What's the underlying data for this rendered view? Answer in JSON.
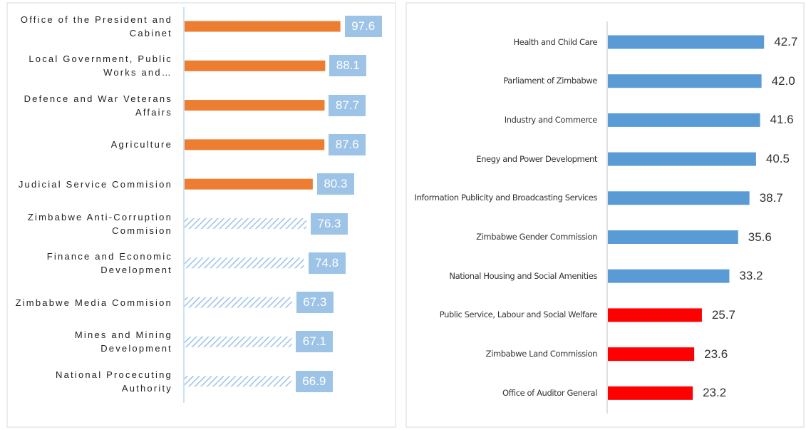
{
  "chart_data": [
    {
      "type": "bar",
      "orientation": "horizontal",
      "categories": [
        "Office of the President and Cabinet",
        "Local Government, Public Works and…",
        "Defence and War Veterans Affairs",
        "Agriculture",
        "Judicial Service Commision",
        "Zimbabwe Anti-Corruption Commision",
        "Finance and Economic Development",
        "Zimbabwe Media Commision",
        "Mines and Mining Development",
        "National Procecuting Authority"
      ],
      "values": [
        97.6,
        88.1,
        87.7,
        87.6,
        80.3,
        76.3,
        74.8,
        67.3,
        67.1,
        66.9
      ],
      "value_labels": [
        "97.6",
        "88.1",
        "87.7",
        "87.6",
        "80.3",
        "76.3",
        "74.8",
        "67.3",
        "67.1",
        "66.9"
      ],
      "colors": [
        "#ed7d31",
        "#ed7d31",
        "#ed7d31",
        "#ed7d31",
        "#ed7d31",
        "#9dc3e6",
        "#9dc3e6",
        "#9dc3e6",
        "#9dc3e6",
        "#9dc3e6"
      ],
      "hatched": [
        false,
        false,
        false,
        false,
        false,
        true,
        true,
        true,
        true,
        true
      ],
      "xlim": [
        0,
        100
      ]
    },
    {
      "type": "bar",
      "orientation": "horizontal",
      "categories": [
        "Health and Child Care",
        "Parliament of Zimbabwe",
        "Industry and Commerce",
        "Enegy and Power Development",
        "Information Publicity and Broadcasting Services",
        "Zimbabwe Gender Commission",
        "National Housing and Social Amenities",
        "Public Service, Labour and Social Welfare",
        "Zimbabwe Land Commission",
        "Office of Auditor General"
      ],
      "values": [
        42.7,
        42.0,
        41.6,
        40.5,
        38.7,
        35.6,
        33.2,
        25.7,
        23.6,
        23.2
      ],
      "value_labels": [
        "42.7",
        "42.0",
        "41.6",
        "40.5",
        "38.7",
        "35.6",
        "33.2",
        "25.7",
        "23.6",
        "23.2"
      ],
      "colors": [
        "#5b9bd5",
        "#5b9bd5",
        "#5b9bd5",
        "#5b9bd5",
        "#5b9bd5",
        "#5b9bd5",
        "#5b9bd5",
        "#ff0000",
        "#ff0000",
        "#ff0000"
      ],
      "hatched": [
        false,
        false,
        false,
        false,
        false,
        false,
        false,
        false,
        false,
        false
      ],
      "xlim": [
        0,
        45
      ]
    }
  ]
}
